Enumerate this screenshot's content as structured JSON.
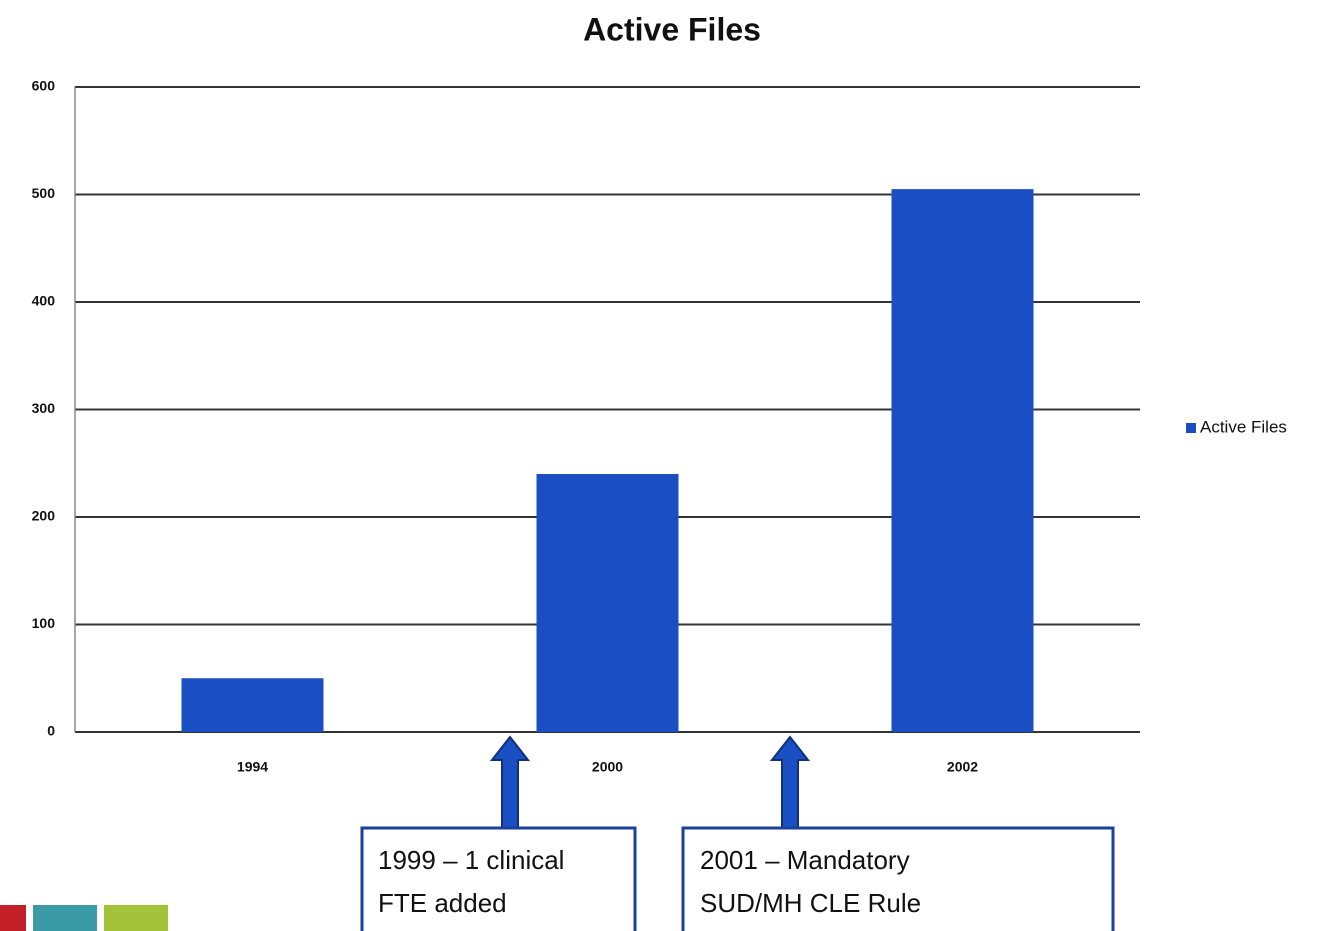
{
  "chart_data": {
    "type": "bar",
    "title": "Active Files",
    "categories": [
      "1994",
      "2000",
      "2002"
    ],
    "series": [
      {
        "name": "Active Files",
        "color": "#1a4fc4",
        "values": [
          50,
          240,
          505
        ]
      }
    ],
    "ylim": [
      0,
      600
    ],
    "yticks": [
      0,
      100,
      200,
      300,
      400,
      500,
      600
    ],
    "grid": true,
    "legend": "right",
    "annotations": [
      {
        "lines": [
          "1999 – 1 clinical",
          "FTE added"
        ]
      },
      {
        "lines": [
          "2001 – Mandatory",
          "SUD/MH CLE Rule"
        ]
      }
    ]
  }
}
